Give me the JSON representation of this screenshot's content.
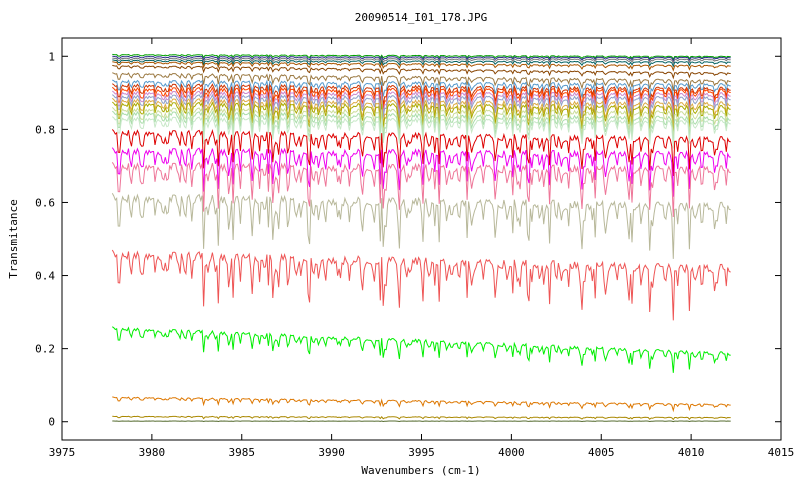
{
  "chart_data": {
    "type": "line",
    "title": "20090514_I01_178.JPG",
    "xlabel": "Wavenumbers (cm-1)",
    "ylabel": "Transmitance",
    "xlim": [
      3975,
      4015
    ],
    "ylim": [
      -0.05,
      1.05
    ],
    "x_start": 3977.8,
    "x_end": 4012.2,
    "x_ticks": [
      "3975",
      "3980",
      "3985",
      "3990",
      "3995",
      "4000",
      "4005",
      "4010",
      "4015"
    ],
    "y_ticks": [
      "0",
      "0.2",
      "0.4",
      "0.6",
      "0.8",
      "1"
    ],
    "x_tick_values": [
      3975,
      3980,
      3985,
      3990,
      3995,
      4000,
      4005,
      4010,
      4015
    ],
    "y_tick_values": [
      0,
      0.2,
      0.4,
      0.6,
      0.8,
      1
    ],
    "grid": false,
    "legend": "none",
    "series": [
      {
        "color": "#00a000",
        "start": 1.005,
        "end": 1.0,
        "depth": 0.005
      },
      {
        "color": "#2d2d8c",
        "start": 1.0,
        "end": 0.997,
        "depth": 0.006
      },
      {
        "color": "#777777",
        "start": 0.995,
        "end": 0.992,
        "depth": 0.007
      },
      {
        "color": "#006060",
        "start": 0.99,
        "end": 0.985,
        "depth": 0.008
      },
      {
        "color": "#aa5500",
        "start": 0.985,
        "end": 0.975,
        "depth": 0.009
      },
      {
        "color": "#884400",
        "start": 0.975,
        "end": 0.955,
        "depth": 0.01
      },
      {
        "color": "#9a7840",
        "start": 0.955,
        "end": 0.935,
        "depth": 0.02
      },
      {
        "color": "#5599cc",
        "start": 0.935,
        "end": 0.925,
        "depth": 0.03
      },
      {
        "color": "#cc3300",
        "start": 0.925,
        "end": 0.915,
        "depth": 0.04
      },
      {
        "color": "#ff4400",
        "start": 0.915,
        "end": 0.91,
        "depth": 0.045
      },
      {
        "color": "#cc88cc",
        "start": 0.905,
        "end": 0.9,
        "depth": 0.045
      },
      {
        "color": "#8fa0c8",
        "start": 0.895,
        "end": 0.89,
        "depth": 0.045
      },
      {
        "color": "#ddaa44",
        "start": 0.885,
        "end": 0.875,
        "depth": 0.05
      },
      {
        "color": "#aaaa00",
        "start": 0.875,
        "end": 0.865,
        "depth": 0.05
      },
      {
        "color": "#ccdd99",
        "start": 0.86,
        "end": 0.85,
        "depth": 0.05
      },
      {
        "color": "#aaddaa",
        "start": 0.85,
        "end": 0.835,
        "depth": 0.05
      },
      {
        "color": "#c8e8c8",
        "start": 0.835,
        "end": 0.825,
        "depth": 0.05
      },
      {
        "color": "#dd0000",
        "start": 0.8,
        "end": 0.78,
        "depth": 0.07
      },
      {
        "color": "#ee00ee",
        "start": 0.75,
        "end": 0.74,
        "depth": 0.08
      },
      {
        "color": "#ee7799",
        "start": 0.71,
        "end": 0.7,
        "depth": 0.09
      },
      {
        "color": "#b8b89a",
        "start": 0.625,
        "end": 0.6,
        "depth": 0.1
      },
      {
        "color": "#ee5555",
        "start": 0.47,
        "end": 0.43,
        "depth": 0.1
      },
      {
        "color": "#00ee00",
        "start": 0.26,
        "end": 0.19,
        "depth": 0.04
      },
      {
        "color": "#dd7700",
        "start": 0.068,
        "end": 0.048,
        "depth": 0.012
      },
      {
        "color": "#aa8800",
        "start": 0.015,
        "end": 0.012,
        "depth": 0.004
      },
      {
        "color": "#556b2f",
        "start": 0.002,
        "end": 0.002,
        "depth": 0.001
      }
    ]
  }
}
